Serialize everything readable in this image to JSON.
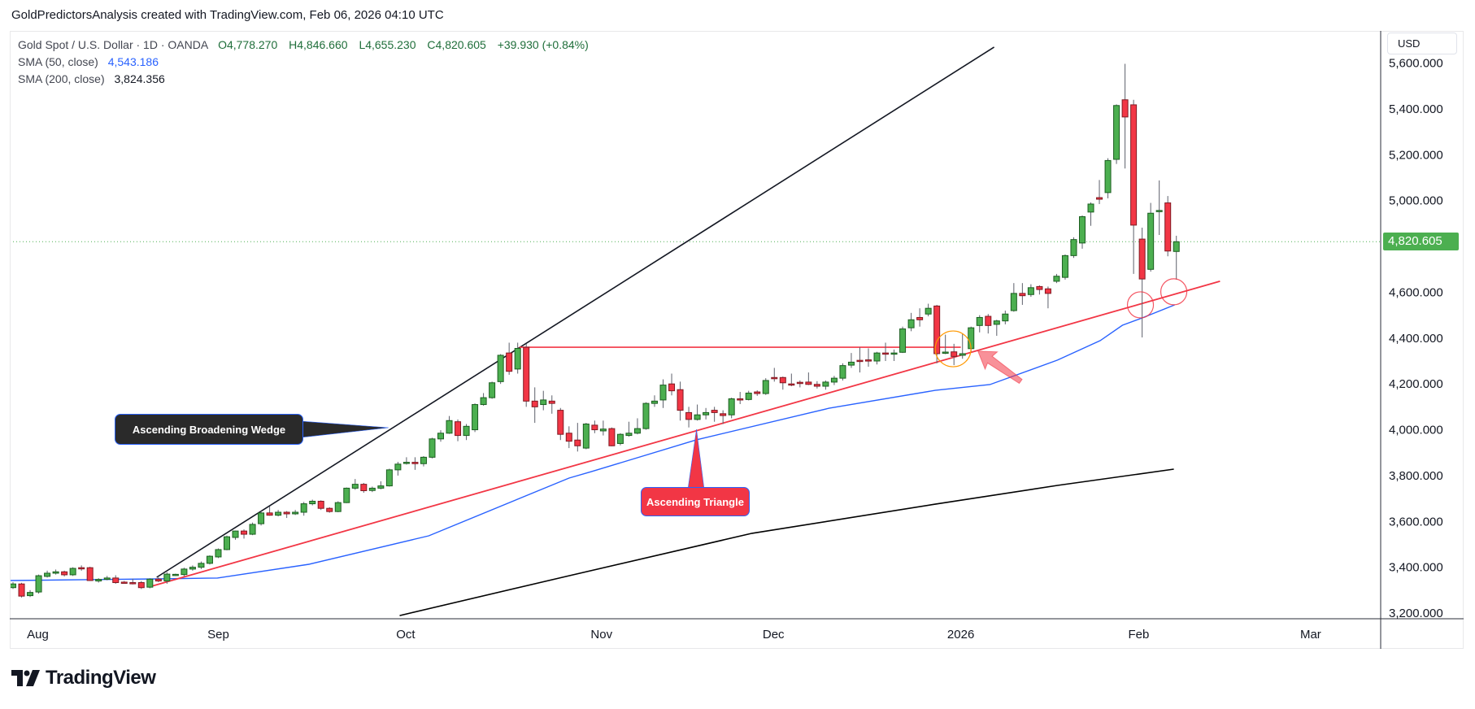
{
  "header": {
    "attribution": "GoldPredictorsAnalysis created with TradingView.com, Feb 06, 2026 04:10 UTC"
  },
  "legend": {
    "symbol": "Gold Spot / U.S. Dollar · 1D · OANDA",
    "open": "O4,778.270",
    "high": "H4,846.660",
    "low": "L4,655.230",
    "close": "C4,820.605",
    "change": "+39.930 (+0.84%)",
    "sma50_label": "SMA (50, close)",
    "sma50_value": "4,543.186",
    "sma200_label": "SMA (200, close)",
    "sma200_value": "3,824.356"
  },
  "price_axis": {
    "currency": "USD",
    "last_price": "4,820.605"
  },
  "branding": {
    "logo_text": "TradingView"
  },
  "colors": {
    "up": "#4caf50",
    "down": "#f23645",
    "sma50": "#2962ff",
    "sma200": "#000000",
    "trend": "#f23645"
  },
  "chart_data": {
    "type": "candlestick",
    "title": "Gold Spot / U.S. Dollar · 1D · OANDA",
    "ylabel": "USD",
    "ylim": [
      3200,
      5600
    ],
    "y_ticks": [
      "3,200.000",
      "3,400.000",
      "3,600.000",
      "3,800.000",
      "4,000.000",
      "4,200.000",
      "4,400.000",
      "4,600.000",
      "5,000.000",
      "5,200.000",
      "5,400.000",
      "5,600.000"
    ],
    "y_tick_values": [
      3200,
      3400,
      3600,
      3800,
      4000,
      4200,
      4400,
      4600,
      5000,
      5200,
      5400,
      5600
    ],
    "x_ticks": [
      {
        "label": "Aug",
        "bar": 2.9
      },
      {
        "label": "Sep",
        "bar": 24
      },
      {
        "label": "Oct",
        "bar": 45.9
      },
      {
        "label": "Nov",
        "bar": 68.8
      },
      {
        "label": "Dec",
        "bar": 88.9
      },
      {
        "label": "2026",
        "bar": 110.8
      },
      {
        "label": "Feb",
        "bar": 131.6
      },
      {
        "label": "Mar",
        "bar": 151.7
      }
    ],
    "ohlc_fields": [
      "open",
      "high",
      "low",
      "close"
    ],
    "candles": [
      [
        3311,
        3335,
        3305,
        3327
      ],
      [
        3327,
        3332,
        3268,
        3274
      ],
      [
        3276,
        3300,
        3270,
        3290
      ],
      [
        3292,
        3368,
        3285,
        3363
      ],
      [
        3360,
        3385,
        3355,
        3374
      ],
      [
        3374,
        3390,
        3368,
        3380
      ],
      [
        3380,
        3385,
        3360,
        3367
      ],
      [
        3367,
        3400,
        3362,
        3395
      ],
      [
        3398,
        3408,
        3385,
        3396
      ],
      [
        3398,
        3402,
        3340,
        3342
      ],
      [
        3340,
        3352,
        3333,
        3347
      ],
      [
        3347,
        3362,
        3343,
        3353
      ],
      [
        3353,
        3365,
        3328,
        3333
      ],
      [
        3335,
        3340,
        3330,
        3333
      ],
      [
        3333,
        3350,
        3325,
        3331
      ],
      [
        3333,
        3340,
        3305,
        3311
      ],
      [
        3313,
        3352,
        3308,
        3348
      ],
      [
        3348,
        3356,
        3335,
        3340
      ],
      [
        3340,
        3378,
        3328,
        3370
      ],
      [
        3367,
        3372,
        3362,
        3369
      ],
      [
        3368,
        3398,
        3360,
        3392
      ],
      [
        3392,
        3408,
        3385,
        3400
      ],
      [
        3400,
        3425,
        3392,
        3417
      ],
      [
        3417,
        3452,
        3412,
        3448
      ],
      [
        3445,
        3482,
        3440,
        3477
      ],
      [
        3477,
        3538,
        3474,
        3533
      ],
      [
        3530,
        3560,
        3520,
        3558
      ],
      [
        3558,
        3565,
        3525,
        3544
      ],
      [
        3544,
        3595,
        3540,
        3587
      ],
      [
        3590,
        3645,
        3582,
        3637
      ],
      [
        3637,
        3665,
        3625,
        3627
      ],
      [
        3627,
        3650,
        3622,
        3640
      ],
      [
        3640,
        3645,
        3615,
        3633
      ],
      [
        3633,
        3650,
        3628,
        3640
      ],
      [
        3640,
        3685,
        3625,
        3677
      ],
      [
        3677,
        3695,
        3670,
        3688
      ],
      [
        3688,
        3692,
        3650,
        3657
      ],
      [
        3657,
        3662,
        3638,
        3643
      ],
      [
        3643,
        3688,
        3640,
        3682
      ],
      [
        3682,
        3748,
        3680,
        3745
      ],
      [
        3745,
        3785,
        3738,
        3762
      ],
      [
        3762,
        3768,
        3725,
        3734
      ],
      [
        3735,
        3752,
        3728,
        3745
      ],
      [
        3745,
        3775,
        3740,
        3755
      ],
      [
        3755,
        3830,
        3752,
        3825
      ],
      [
        3825,
        3860,
        3800,
        3850
      ],
      [
        3855,
        3880,
        3848,
        3858
      ],
      [
        3858,
        3880,
        3825,
        3852
      ],
      [
        3852,
        3885,
        3840,
        3880
      ],
      [
        3880,
        3965,
        3875,
        3960
      ],
      [
        3960,
        3998,
        3948,
        3985
      ],
      [
        3985,
        4060,
        3982,
        4040
      ],
      [
        4035,
        4045,
        3950,
        3975
      ],
      [
        3975,
        4025,
        3955,
        4015
      ],
      [
        4000,
        4115,
        3990,
        4110
      ],
      [
        4110,
        4160,
        4105,
        4140
      ],
      [
        4140,
        4210,
        4135,
        4205
      ],
      [
        4210,
        4330,
        4200,
        4325
      ],
      [
        4335,
        4380,
        4240,
        4255
      ],
      [
        4265,
        4380,
        4245,
        4355
      ],
      [
        4360,
        4375,
        4100,
        4125
      ],
      [
        4125,
        4185,
        4030,
        4100
      ],
      [
        4110,
        4170,
        4085,
        4130
      ],
      [
        4125,
        4150,
        4070,
        4115
      ],
      [
        4085,
        4095,
        3955,
        3980
      ],
      [
        3985,
        4015,
        3920,
        3950
      ],
      [
        3955,
        4030,
        3905,
        3930
      ],
      [
        3920,
        4030,
        3915,
        4025
      ],
      [
        4020,
        4040,
        3985,
        4000
      ],
      [
        3995,
        4040,
        3975,
        4003
      ],
      [
        4005,
        4010,
        3928,
        3930
      ],
      [
        3940,
        3985,
        3932,
        3980
      ],
      [
        3975,
        4035,
        3970,
        3985
      ],
      [
        3985,
        4050,
        3980,
        4005
      ],
      [
        4005,
        4120,
        4000,
        4115
      ],
      [
        4115,
        4150,
        4100,
        4125
      ],
      [
        4130,
        4220,
        4095,
        4195
      ],
      [
        4200,
        4245,
        4150,
        4170
      ],
      [
        4175,
        4210,
        4040,
        4085
      ],
      [
        4075,
        4100,
        4010,
        4045
      ],
      [
        4045,
        4110,
        4040,
        4065
      ],
      [
        4065,
        4095,
        4045,
        4075
      ],
      [
        4085,
        4100,
        4035,
        4075
      ],
      [
        4070,
        4085,
        4025,
        4062
      ],
      [
        4065,
        4140,
        4050,
        4135
      ],
      [
        4135,
        4165,
        4112,
        4131
      ],
      [
        4132,
        4170,
        4128,
        4160
      ],
      [
        4165,
        4172,
        4148,
        4158
      ],
      [
        4158,
        4225,
        4152,
        4215
      ],
      [
        4228,
        4270,
        4210,
        4225
      ],
      [
        4228,
        4232,
        4175,
        4205
      ],
      [
        4200,
        4245,
        4190,
        4199
      ],
      [
        4207,
        4215,
        4185,
        4206
      ],
      [
        4208,
        4250,
        4195,
        4198
      ],
      [
        4198,
        4212,
        4180,
        4190
      ],
      [
        4190,
        4215,
        4175,
        4208
      ],
      [
        4208,
        4235,
        4195,
        4225
      ],
      [
        4225,
        4290,
        4215,
        4280
      ],
      [
        4282,
        4335,
        4270,
        4295
      ],
      [
        4303,
        4360,
        4250,
        4300
      ],
      [
        4305,
        4355,
        4275,
        4300
      ],
      [
        4300,
        4340,
        4285,
        4335
      ],
      [
        4335,
        4380,
        4300,
        4332
      ],
      [
        4334,
        4350,
        4300,
        4335
      ],
      [
        4338,
        4450,
        4335,
        4440
      ],
      [
        4445,
        4510,
        4430,
        4480
      ],
      [
        4490,
        4530,
        4450,
        4480
      ],
      [
        4505,
        4550,
        4495,
        4530
      ],
      [
        4540,
        4545,
        4290,
        4332
      ],
      [
        4338,
        4415,
        4330,
        4339
      ],
      [
        4340,
        4375,
        4282,
        4320
      ],
      [
        4325,
        4420,
        4310,
        4332
      ],
      [
        4354,
        4450,
        4340,
        4445
      ],
      [
        4455,
        4500,
        4425,
        4490
      ],
      [
        4495,
        4505,
        4420,
        4455
      ],
      [
        4460,
        4480,
        4410,
        4475
      ],
      [
        4475,
        4520,
        4460,
        4505
      ],
      [
        4520,
        4640,
        4515,
        4595
      ],
      [
        4595,
        4640,
        4545,
        4585
      ],
      [
        4590,
        4635,
        4580,
        4620
      ],
      [
        4625,
        4630,
        4590,
        4612
      ],
      [
        4615,
        4625,
        4530,
        4595
      ],
      [
        4648,
        4680,
        4640,
        4670
      ],
      [
        4665,
        4765,
        4655,
        4760
      ],
      [
        4760,
        4840,
        4750,
        4830
      ],
      [
        4815,
        4935,
        4790,
        4930
      ],
      [
        4950,
        4992,
        4890,
        4985
      ],
      [
        5013,
        5090,
        4985,
        5006
      ],
      [
        5035,
        5185,
        5010,
        5175
      ],
      [
        5180,
        5420,
        5160,
        5415
      ],
      [
        5440,
        5597,
        5140,
        5365
      ],
      [
        5418,
        5440,
        4680,
        4893
      ],
      [
        4832,
        4882,
        4403,
        4658
      ],
      [
        4700,
        4990,
        4690,
        4945
      ],
      [
        4955,
        5088,
        4850,
        4957
      ],
      [
        4990,
        5020,
        4757,
        4780
      ],
      [
        4778,
        4846.66,
        4655.23,
        4820.605
      ]
    ],
    "sma50": [
      [
        -0.3,
        3342
      ],
      [
        16.8,
        3349
      ],
      [
        23.9,
        3353
      ],
      [
        34.6,
        3413
      ],
      [
        48.6,
        3537
      ],
      [
        65,
        3789
      ],
      [
        67.6,
        3817
      ],
      [
        79.9,
        3956
      ],
      [
        95.4,
        4094
      ],
      [
        107.8,
        4172
      ],
      [
        114.2,
        4197
      ],
      [
        122.1,
        4304
      ],
      [
        127.1,
        4389
      ],
      [
        129.7,
        4456
      ],
      [
        131.8,
        4485
      ],
      [
        135.8,
        4545
      ]
    ],
    "sma200": [
      [
        45.2,
        3189
      ],
      [
        65,
        3363
      ],
      [
        86.4,
        3548
      ],
      [
        107.8,
        3675
      ],
      [
        122.1,
        3757
      ],
      [
        135.7,
        3828
      ]
    ],
    "drawings": {
      "wedge_upper_line": [
        [
          16.8,
          3356
        ],
        [
          114.7,
          5670
        ]
      ],
      "ascending_trendline": [
        [
          15.9,
          3314
        ],
        [
          141.1,
          4648
        ]
      ],
      "resistance_line": [
        [
          59.2,
          4360
        ],
        [
          110.8,
          4360
        ]
      ],
      "orange_circle": {
        "bar": 109.9,
        "price": 4353
      },
      "red_circles": [
        {
          "bar": 131.8,
          "price": 4545
        },
        {
          "bar": 135.7,
          "price": 4602
        }
      ],
      "arrow": {
        "from": [
          117.8,
          4211
        ],
        "to": [
          112.8,
          4343
        ]
      },
      "wedge_callout": {
        "text": "Ascending Broadening Wedge",
        "tip": [
          43.9,
          4009
        ]
      },
      "triangle_callout": {
        "text": "Ascending Triangle",
        "tip": [
          79.9,
          4002
        ]
      }
    },
    "last_price": 4820.605
  }
}
